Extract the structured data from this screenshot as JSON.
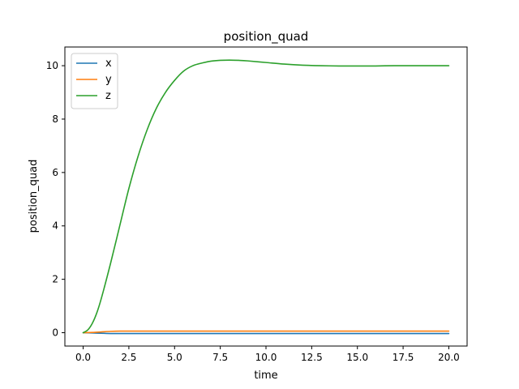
{
  "chart_data": {
    "type": "line",
    "title": "position_quad",
    "xlabel": "time",
    "ylabel": "position_quad",
    "xlim": [
      -1.0,
      21.0
    ],
    "ylim": [
      -0.5,
      10.7
    ],
    "xticks": [
      0.0,
      2.5,
      5.0,
      7.5,
      10.0,
      12.5,
      15.0,
      17.5,
      20.0
    ],
    "xtick_labels": [
      "0.0",
      "2.5",
      "5.0",
      "7.5",
      "10.0",
      "12.5",
      "15.0",
      "17.5",
      "20.0"
    ],
    "yticks": [
      0,
      2,
      4,
      6,
      8,
      10
    ],
    "ytick_labels": [
      "0",
      "2",
      "4",
      "6",
      "8",
      "10"
    ],
    "grid": false,
    "legend_position": "top-left",
    "series": [
      {
        "name": "x",
        "color": "#1f77b4",
        "x": [
          0.0,
          0.5,
          1.0,
          1.5,
          2.0,
          3.0,
          5.0,
          10.0,
          15.0,
          20.0
        ],
        "y": [
          0.0,
          -0.01,
          -0.02,
          -0.03,
          -0.03,
          -0.03,
          -0.03,
          -0.03,
          -0.03,
          -0.03
        ]
      },
      {
        "name": "y",
        "color": "#ff7f0e",
        "x": [
          0.0,
          0.5,
          1.0,
          1.5,
          2.0,
          2.5,
          3.0,
          5.0,
          10.0,
          15.0,
          20.0
        ],
        "y": [
          0.0,
          0.01,
          0.03,
          0.05,
          0.06,
          0.06,
          0.06,
          0.06,
          0.06,
          0.06,
          0.06
        ]
      },
      {
        "name": "z",
        "color": "#2ca02c",
        "x": [
          0.0,
          0.25,
          0.5,
          0.75,
          1.0,
          1.5,
          2.0,
          2.5,
          3.0,
          3.5,
          4.0,
          4.5,
          5.0,
          5.5,
          6.0,
          6.5,
          7.0,
          7.5,
          8.0,
          8.5,
          9.0,
          10.0,
          11.0,
          12.0,
          13.0,
          14.0,
          15.0,
          16.0,
          17.0,
          18.0,
          19.0,
          20.0
        ],
        "y": [
          0.0,
          0.1,
          0.35,
          0.75,
          1.3,
          2.6,
          4.0,
          5.4,
          6.6,
          7.6,
          8.4,
          9.0,
          9.45,
          9.8,
          10.0,
          10.1,
          10.17,
          10.2,
          10.21,
          10.2,
          10.18,
          10.12,
          10.06,
          10.02,
          10.0,
          9.99,
          9.99,
          9.99,
          10.0,
          10.0,
          10.0,
          10.0
        ]
      }
    ]
  }
}
